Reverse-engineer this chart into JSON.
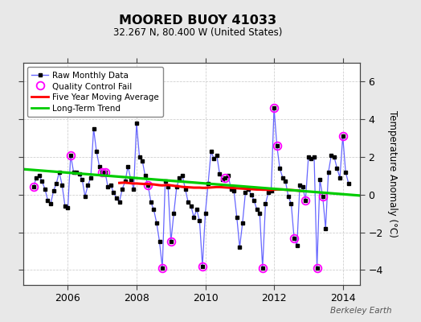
{
  "title": "MOORED BUOY 41033",
  "subtitle": "32.267 N, 80.400 W (United States)",
  "ylabel": "Temperature Anomaly (°C)",
  "watermark": "Berkeley Earth",
  "xlim": [
    2004.7,
    2014.5
  ],
  "ylim": [
    -4.8,
    7.0
  ],
  "yticks": [
    -4,
    -2,
    0,
    2,
    4,
    6
  ],
  "xticks": [
    2006,
    2008,
    2010,
    2012,
    2014
  ],
  "bg_color": "#e8e8e8",
  "plot_bg_color": "#ffffff",
  "raw_color": "#6666ff",
  "dot_color": "#000000",
  "qc_color": "#ff00ff",
  "moving_avg_color": "#ff0000",
  "trend_color": "#00cc00",
  "raw_data": [
    [
      2005.0,
      0.4
    ],
    [
      2005.083,
      0.9
    ],
    [
      2005.167,
      1.0
    ],
    [
      2005.25,
      0.7
    ],
    [
      2005.333,
      0.3
    ],
    [
      2005.417,
      -0.3
    ],
    [
      2005.5,
      -0.5
    ],
    [
      2005.583,
      0.2
    ],
    [
      2005.667,
      0.6
    ],
    [
      2005.75,
      1.2
    ],
    [
      2005.833,
      0.5
    ],
    [
      2005.917,
      -0.6
    ],
    [
      2006.0,
      -0.7
    ],
    [
      2006.083,
      2.1
    ],
    [
      2006.167,
      1.2
    ],
    [
      2006.25,
      1.2
    ],
    [
      2006.333,
      1.1
    ],
    [
      2006.417,
      0.8
    ],
    [
      2006.5,
      -0.1
    ],
    [
      2006.583,
      0.5
    ],
    [
      2006.667,
      0.9
    ],
    [
      2006.75,
      3.5
    ],
    [
      2006.833,
      2.3
    ],
    [
      2006.917,
      1.5
    ],
    [
      2007.0,
      1.2
    ],
    [
      2007.083,
      1.2
    ],
    [
      2007.167,
      0.4
    ],
    [
      2007.25,
      0.5
    ],
    [
      2007.333,
      0.1
    ],
    [
      2007.417,
      -0.2
    ],
    [
      2007.5,
      -0.4
    ],
    [
      2007.583,
      0.3
    ],
    [
      2007.667,
      0.7
    ],
    [
      2007.75,
      1.5
    ],
    [
      2007.833,
      0.8
    ],
    [
      2007.917,
      0.3
    ],
    [
      2008.0,
      3.8
    ],
    [
      2008.083,
      2.0
    ],
    [
      2008.167,
      1.8
    ],
    [
      2008.25,
      1.0
    ],
    [
      2008.333,
      0.5
    ],
    [
      2008.417,
      -0.4
    ],
    [
      2008.5,
      -0.8
    ],
    [
      2008.583,
      -1.5
    ],
    [
      2008.667,
      -2.5
    ],
    [
      2008.75,
      -3.9
    ],
    [
      2008.833,
      0.7
    ],
    [
      2008.917,
      0.4
    ],
    [
      2009.0,
      -2.5
    ],
    [
      2009.083,
      -1.0
    ],
    [
      2009.167,
      0.4
    ],
    [
      2009.25,
      0.9
    ],
    [
      2009.333,
      1.0
    ],
    [
      2009.417,
      0.3
    ],
    [
      2009.5,
      -0.4
    ],
    [
      2009.583,
      -0.6
    ],
    [
      2009.667,
      -1.2
    ],
    [
      2009.75,
      -0.8
    ],
    [
      2009.833,
      -1.4
    ],
    [
      2009.917,
      -3.8
    ],
    [
      2010.0,
      -1.0
    ],
    [
      2010.083,
      0.6
    ],
    [
      2010.167,
      2.3
    ],
    [
      2010.25,
      1.9
    ],
    [
      2010.333,
      2.1
    ],
    [
      2010.417,
      1.1
    ],
    [
      2010.5,
      0.8
    ],
    [
      2010.583,
      0.9
    ],
    [
      2010.667,
      1.0
    ],
    [
      2010.75,
      0.3
    ],
    [
      2010.833,
      0.2
    ],
    [
      2010.917,
      -1.2
    ],
    [
      2011.0,
      -2.8
    ],
    [
      2011.083,
      -1.5
    ],
    [
      2011.167,
      0.1
    ],
    [
      2011.25,
      0.3
    ],
    [
      2011.333,
      0.0
    ],
    [
      2011.417,
      -0.3
    ],
    [
      2011.5,
      -0.8
    ],
    [
      2011.583,
      -1.0
    ],
    [
      2011.667,
      -3.9
    ],
    [
      2011.75,
      -0.5
    ],
    [
      2011.833,
      0.1
    ],
    [
      2011.917,
      0.2
    ],
    [
      2012.0,
      4.6
    ],
    [
      2012.083,
      2.6
    ],
    [
      2012.167,
      1.4
    ],
    [
      2012.25,
      0.9
    ],
    [
      2012.333,
      0.7
    ],
    [
      2012.417,
      -0.1
    ],
    [
      2012.5,
      -0.5
    ],
    [
      2012.583,
      -2.3
    ],
    [
      2012.667,
      -2.7
    ],
    [
      2012.75,
      0.5
    ],
    [
      2012.833,
      0.4
    ],
    [
      2012.917,
      -0.3
    ],
    [
      2013.0,
      2.0
    ],
    [
      2013.083,
      1.9
    ],
    [
      2013.167,
      2.0
    ],
    [
      2013.25,
      -3.9
    ],
    [
      2013.333,
      0.8
    ],
    [
      2013.417,
      -0.1
    ],
    [
      2013.5,
      -1.8
    ],
    [
      2013.583,
      1.2
    ],
    [
      2013.667,
      2.1
    ],
    [
      2013.75,
      2.0
    ],
    [
      2013.833,
      1.4
    ],
    [
      2013.917,
      0.9
    ],
    [
      2014.0,
      3.1
    ],
    [
      2014.083,
      1.2
    ],
    [
      2014.167,
      0.6
    ]
  ],
  "qc_fail": [
    [
      2005.0,
      0.4
    ],
    [
      2006.083,
      2.1
    ],
    [
      2007.0,
      1.2
    ],
    [
      2007.083,
      1.2
    ],
    [
      2008.333,
      0.5
    ],
    [
      2008.75,
      -3.9
    ],
    [
      2009.0,
      -2.5
    ],
    [
      2009.917,
      -3.8
    ],
    [
      2010.583,
      0.9
    ],
    [
      2011.667,
      -3.9
    ],
    [
      2012.0,
      4.6
    ],
    [
      2012.083,
      2.6
    ],
    [
      2012.583,
      -2.3
    ],
    [
      2012.917,
      -0.3
    ],
    [
      2013.25,
      -3.9
    ],
    [
      2013.417,
      -0.1
    ],
    [
      2014.0,
      3.1
    ]
  ],
  "moving_avg": [
    [
      2007.5,
      0.62
    ],
    [
      2007.583,
      0.63
    ],
    [
      2007.667,
      0.64
    ],
    [
      2007.75,
      0.62
    ],
    [
      2007.833,
      0.6
    ],
    [
      2007.917,
      0.59
    ],
    [
      2008.0,
      0.59
    ],
    [
      2008.083,
      0.58
    ],
    [
      2008.167,
      0.57
    ],
    [
      2008.25,
      0.56
    ],
    [
      2008.333,
      0.56
    ],
    [
      2008.417,
      0.55
    ],
    [
      2008.5,
      0.54
    ],
    [
      2008.583,
      0.52
    ],
    [
      2008.667,
      0.5
    ],
    [
      2008.75,
      0.49
    ],
    [
      2008.833,
      0.5
    ],
    [
      2008.917,
      0.51
    ],
    [
      2009.0,
      0.49
    ],
    [
      2009.083,
      0.47
    ],
    [
      2009.167,
      0.45
    ],
    [
      2009.25,
      0.43
    ],
    [
      2009.333,
      0.41
    ],
    [
      2009.417,
      0.4
    ],
    [
      2009.5,
      0.39
    ],
    [
      2009.583,
      0.38
    ],
    [
      2009.667,
      0.37
    ],
    [
      2009.75,
      0.37
    ],
    [
      2009.833,
      0.37
    ],
    [
      2009.917,
      0.36
    ],
    [
      2010.0,
      0.36
    ],
    [
      2010.083,
      0.37
    ],
    [
      2010.167,
      0.38
    ],
    [
      2010.25,
      0.39
    ],
    [
      2010.333,
      0.4
    ],
    [
      2010.417,
      0.4
    ],
    [
      2010.5,
      0.39
    ],
    [
      2010.583,
      0.38
    ],
    [
      2010.667,
      0.37
    ],
    [
      2010.75,
      0.36
    ],
    [
      2010.833,
      0.35
    ],
    [
      2010.917,
      0.34
    ],
    [
      2011.0,
      0.33
    ],
    [
      2011.083,
      0.32
    ],
    [
      2011.167,
      0.31
    ],
    [
      2011.25,
      0.3
    ],
    [
      2011.333,
      0.29
    ],
    [
      2011.417,
      0.28
    ],
    [
      2011.5,
      0.27
    ],
    [
      2011.583,
      0.27
    ],
    [
      2011.667,
      0.26
    ],
    [
      2011.75,
      0.26
    ],
    [
      2011.833,
      0.25
    ],
    [
      2011.917,
      0.25
    ],
    [
      2012.0,
      0.26
    ],
    [
      2012.083,
      0.27
    ],
    [
      2012.167,
      0.27
    ],
    [
      2012.25,
      0.27
    ],
    [
      2012.333,
      0.26
    ],
    [
      2012.417,
      0.25
    ],
    [
      2012.5,
      0.24
    ],
    [
      2012.583,
      0.23
    ],
    [
      2012.667,
      0.22
    ],
    [
      2012.75,
      0.2
    ],
    [
      2012.833,
      0.18
    ]
  ],
  "trend_x": [
    2004.7,
    2014.5
  ],
  "trend_y": [
    1.35,
    -0.05
  ]
}
